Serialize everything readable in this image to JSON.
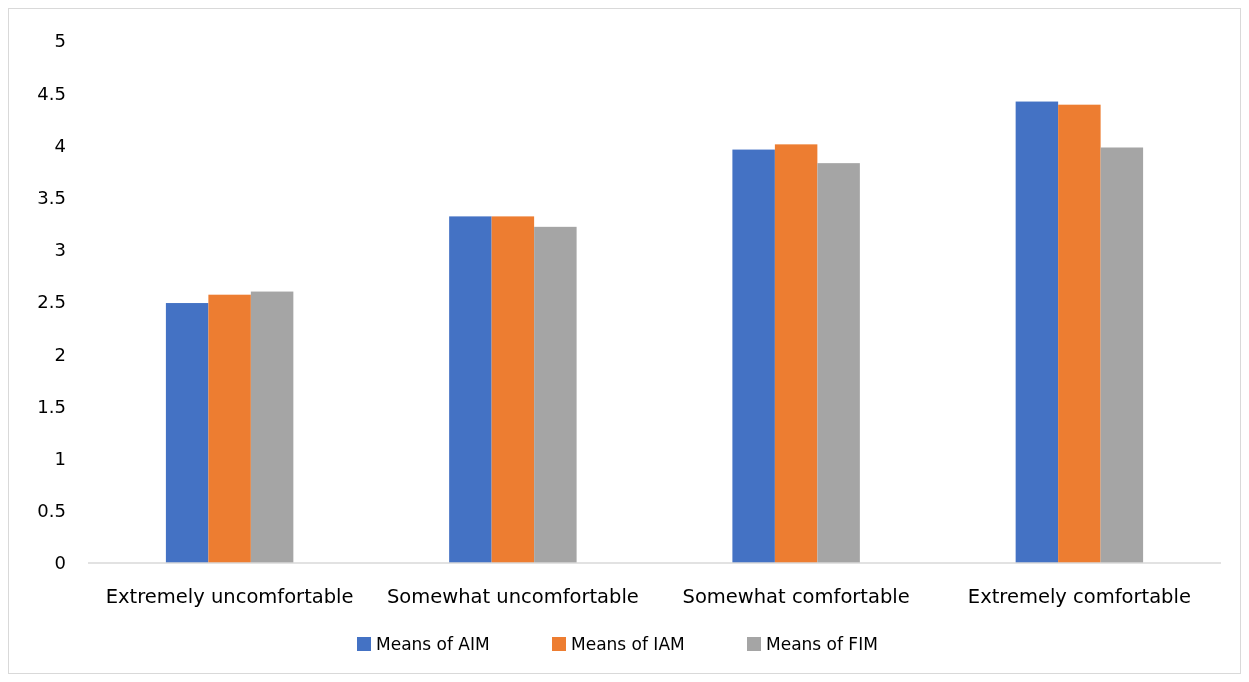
{
  "chart_data": {
    "type": "bar",
    "categories": [
      "Extremely uncomfortable",
      "Somewhat uncomfortable",
      "Somewhat comfortable",
      "Extremely comfortable"
    ],
    "series": [
      {
        "name": "Means of AIM",
        "color": "#4472c4",
        "values": [
          2.49,
          3.32,
          3.96,
          4.42
        ]
      },
      {
        "name": "Means of IAM",
        "color": "#ed7d31",
        "values": [
          2.57,
          3.32,
          4.01,
          4.39
        ]
      },
      {
        "name": "Means of FIM",
        "color": "#a5a5a5",
        "values": [
          2.6,
          3.22,
          3.83,
          3.98
        ]
      }
    ],
    "ylim": [
      0,
      5
    ],
    "yticks": [
      0,
      0.5,
      1,
      1.5,
      2,
      2.5,
      3,
      3.5,
      4,
      4.5,
      5
    ],
    "grid": false,
    "legend": "bottom"
  }
}
